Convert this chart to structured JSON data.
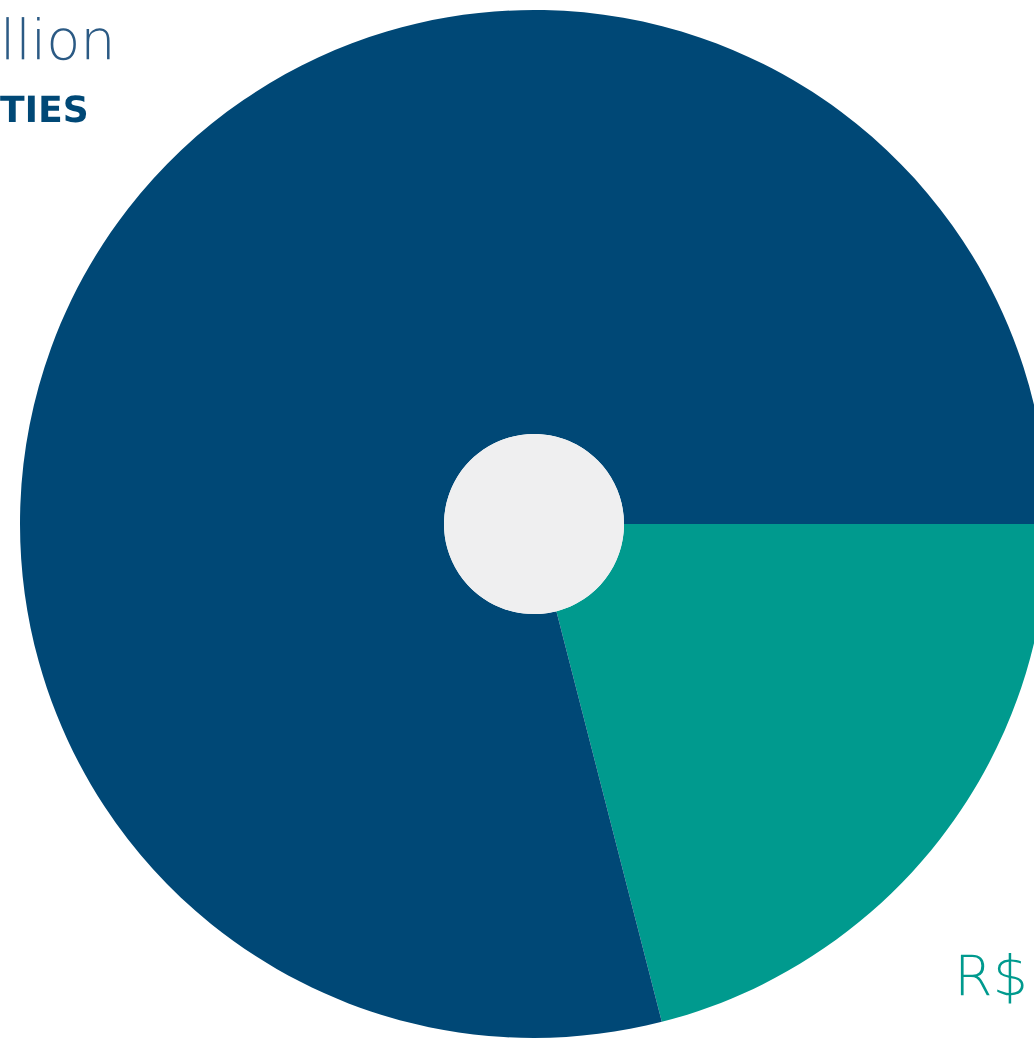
{
  "chart_data": {
    "type": "donut",
    "categories": [
      null,
      null
    ],
    "values": [
      21,
      79
    ],
    "colors": [
      "#009a8e",
      "#004876"
    ],
    "annotations": [
      "llion",
      "TIES",
      "R$"
    ]
  }
}
